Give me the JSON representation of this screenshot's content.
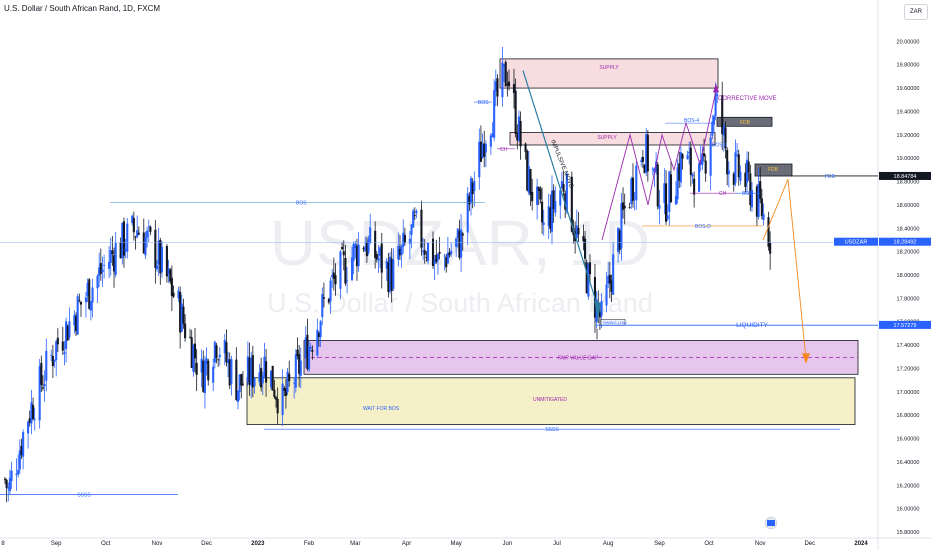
{
  "header": {
    "title": "U.S. Dollar / South African Rand, 1D, FXCM",
    "currency": "ZAR"
  },
  "watermark": {
    "symbol": "USDZAR, 1D",
    "name": "U.S. Dollar / South African Rand"
  },
  "colors": {
    "up": "#2962ff",
    "down": "#131722",
    "supply_fill": "#f8dde0",
    "fvg_fill": "#e6c6ec",
    "unmit_fill": "#f6f0c8",
    "purple": "#9c27b0",
    "blue_line": "#2962ff",
    "orange": "#f5891f",
    "impulsive_arrow": "#2a7ea3"
  },
  "chart_data": {
    "type": "candlestick",
    "symbol": "USDZAR",
    "timeframe": "1D",
    "source": "FXCM",
    "ylim": [
      15.8,
      20.2
    ],
    "y_ticks": [
      "15.80000",
      "16.00000",
      "16.20000",
      "16.40000",
      "16.60000",
      "16.80000",
      "17.00000",
      "17.20000",
      "17.40000",
      "17.60000",
      "17.80000",
      "18.00000",
      "18.20000",
      "18.40000",
      "18.60000",
      "18.80000",
      "19.00000",
      "19.20000",
      "19.40000",
      "19.60000",
      "19.80000",
      "20.00000"
    ],
    "x_ticks": [
      "8",
      "Sep",
      "Oct",
      "Nov",
      "Dec",
      "2023",
      "Feb",
      "Mar",
      "Apr",
      "May",
      "Jun",
      "Jul",
      "Aug",
      "Sep",
      "Oct",
      "Nov",
      "Dec",
      "2024"
    ],
    "price_anchors": [
      {
        "date": "2022-08-01",
        "close": 16.25
      },
      {
        "date": "2022-08-03",
        "close": 16.15
      },
      {
        "date": "2022-08-15",
        "close": 16.8
      },
      {
        "date": "2022-09-01",
        "close": 17.4
      },
      {
        "date": "2022-09-20",
        "close": 17.85
      },
      {
        "date": "2022-10-06",
        "close": 18.2
      },
      {
        "date": "2022-10-20",
        "close": 18.4
      },
      {
        "date": "2022-10-31",
        "close": 18.2
      },
      {
        "date": "2022-11-12",
        "close": 17.8
      },
      {
        "date": "2022-11-28",
        "close": 17.15
      },
      {
        "date": "2022-12-07",
        "close": 17.45
      },
      {
        "date": "2022-12-20",
        "close": 17.05
      },
      {
        "date": "2023-01-05",
        "close": 17.25
      },
      {
        "date": "2023-01-16",
        "close": 16.9
      },
      {
        "date": "2023-02-01",
        "close": 17.4
      },
      {
        "date": "2023-02-14",
        "close": 17.9
      },
      {
        "date": "2023-03-06",
        "close": 18.3
      },
      {
        "date": "2023-03-23",
        "close": 18.0
      },
      {
        "date": "2023-04-06",
        "close": 18.4
      },
      {
        "date": "2023-04-20",
        "close": 18.1
      },
      {
        "date": "2023-05-04",
        "close": 18.3
      },
      {
        "date": "2023-05-18",
        "close": 19.2
      },
      {
        "date": "2023-06-01",
        "close": 19.75
      },
      {
        "date": "2023-06-12",
        "close": 18.9
      },
      {
        "date": "2023-06-23",
        "close": 18.4
      },
      {
        "date": "2023-07-05",
        "close": 18.8
      },
      {
        "date": "2023-07-20",
        "close": 17.95
      },
      {
        "date": "2023-07-28",
        "close": 17.6
      },
      {
        "date": "2023-08-10",
        "close": 18.5
      },
      {
        "date": "2023-08-22",
        "close": 19.1
      },
      {
        "date": "2023-09-04",
        "close": 18.6
      },
      {
        "date": "2023-09-15",
        "close": 19.0
      },
      {
        "date": "2023-09-26",
        "close": 18.8
      },
      {
        "date": "2023-10-05",
        "close": 19.5
      },
      {
        "date": "2023-10-13",
        "close": 18.95
      },
      {
        "date": "2023-10-24",
        "close": 18.8
      },
      {
        "date": "2023-11-02",
        "close": 18.55
      },
      {
        "date": "2023-11-08",
        "close": 18.28
      }
    ],
    "current_price": {
      "label": "USDZAR",
      "value": "18.28492"
    },
    "price_levels": [
      {
        "label": "FDB",
        "value": "18.84784"
      },
      {
        "label": "LIQUIDITY",
        "value": "17.57279"
      }
    ]
  },
  "annotations": {
    "supply": "SUPPLY",
    "bos": "BOS",
    "ch": "CH",
    "bos4": "BOS-4",
    "bosd": "BOS-D",
    "fdb": "FDB",
    "corrective": "CORRECTIVE MOVE",
    "impulsive": "IMPULSIVE MOVE",
    "liquidity": "LIQUIDITY",
    "fvg": "FAIR VALUE GAP",
    "unmitigated": "UNMITIGATED",
    "wait": "WAIT FOR BOS",
    "ssss": "SSSS",
    "swing_low": "SWING LOW"
  }
}
